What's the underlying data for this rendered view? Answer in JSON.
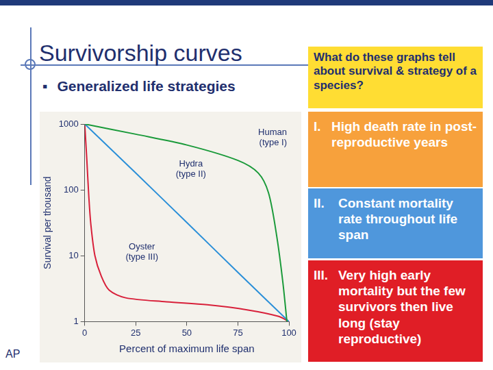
{
  "slide": {
    "title": "Survivorship curves",
    "bullet": "Generalized life strategies",
    "question": "What do these graphs tell about survival & strategy of a species?",
    "points": [
      {
        "numeral": "I.",
        "text": "High death rate in post-reproductive years"
      },
      {
        "numeral": "II.",
        "text": "Constant mortality rate throughout life span"
      },
      {
        "numeral": "III.",
        "text": "Very high early mortality but the few survivors then live long (stay reproductive)"
      }
    ],
    "footer": "AP"
  },
  "chart_data": {
    "type": "line",
    "x_label": "Percent of maximum life span",
    "y_label": "Survival per thousand",
    "xlim": [
      0,
      100
    ],
    "xticks": [
      0,
      25,
      50,
      75,
      100
    ],
    "ylim": [
      1,
      1000
    ],
    "yticks": [
      1,
      10,
      100,
      1000
    ],
    "log": "y",
    "grid": false,
    "series": [
      {
        "name": "Human (type I)",
        "color": "#1a9a3a",
        "x": [
          0,
          25,
          50,
          75,
          85,
          90,
          94,
          97,
          99
        ],
        "values": [
          1000,
          700,
          480,
          280,
          180,
          90,
          20,
          4,
          1
        ]
      },
      {
        "name": "Hydra (type II)",
        "color": "#2a8fd8",
        "x": [
          0,
          25,
          50,
          75,
          100
        ],
        "values": [
          1000,
          180,
          32,
          5.6,
          1
        ]
      },
      {
        "name": "Oyster (type III)",
        "color": "#d8203a",
        "x": [
          0,
          1,
          2,
          3,
          5,
          8,
          12,
          20,
          40,
          60,
          80,
          95,
          100
        ],
        "values": [
          1000,
          300,
          80,
          30,
          10,
          5,
          3,
          2.3,
          2,
          1.8,
          1.5,
          1.2,
          1
        ]
      }
    ]
  }
}
